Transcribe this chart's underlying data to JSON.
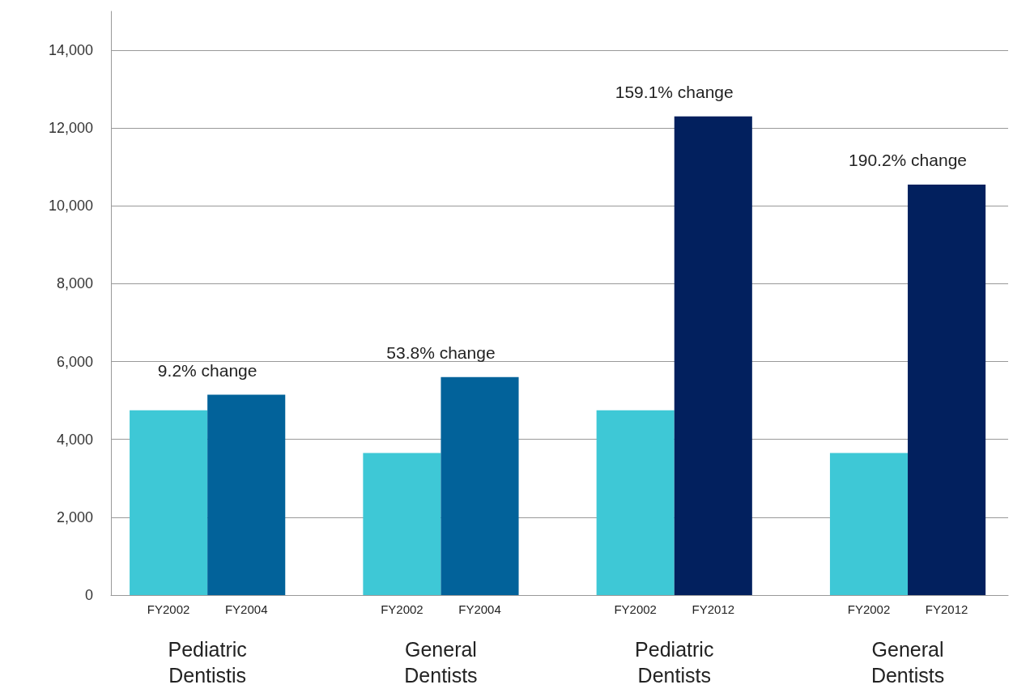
{
  "chart_data": {
    "type": "bar",
    "categories": [
      "FY2002",
      "FY2004",
      "FY2002",
      "FY2004",
      "FY2002",
      "FY2012",
      "FY2002",
      "FY2012"
    ],
    "values": [
      4750,
      5150,
      3650,
      5600,
      4750,
      12300,
      3650,
      10550
    ],
    "colors": [
      "#3ec8d6",
      "#02629a",
      "#3ec8d6",
      "#02629a",
      "#3ec8d6",
      "#02205e",
      "#3ec8d6",
      "#02205e"
    ],
    "annotations": [
      "9.2% change",
      "53.8% change",
      "159.1% change",
      "190.2% change",
      "Pediatric\nDentistis",
      "General\nDentists",
      "Pediatric\nDentists",
      "General\nDentists"
    ],
    "ylim": [
      0,
      15000
    ],
    "yticks": [
      0,
      {
        "value": 2000,
        "label": "2,000"
      },
      {
        "value": 4000,
        "label": "4,000"
      },
      {
        "value": 6000,
        "label": "6,000"
      },
      {
        "value": 8000,
        "label": "8,000"
      },
      {
        "value": 10000,
        "label": "10,000"
      },
      {
        "value": 12000,
        "label": "12,000"
      },
      {
        "value": 14000,
        "label": "14,000"
      }
    ],
    "grid": "y"
  }
}
